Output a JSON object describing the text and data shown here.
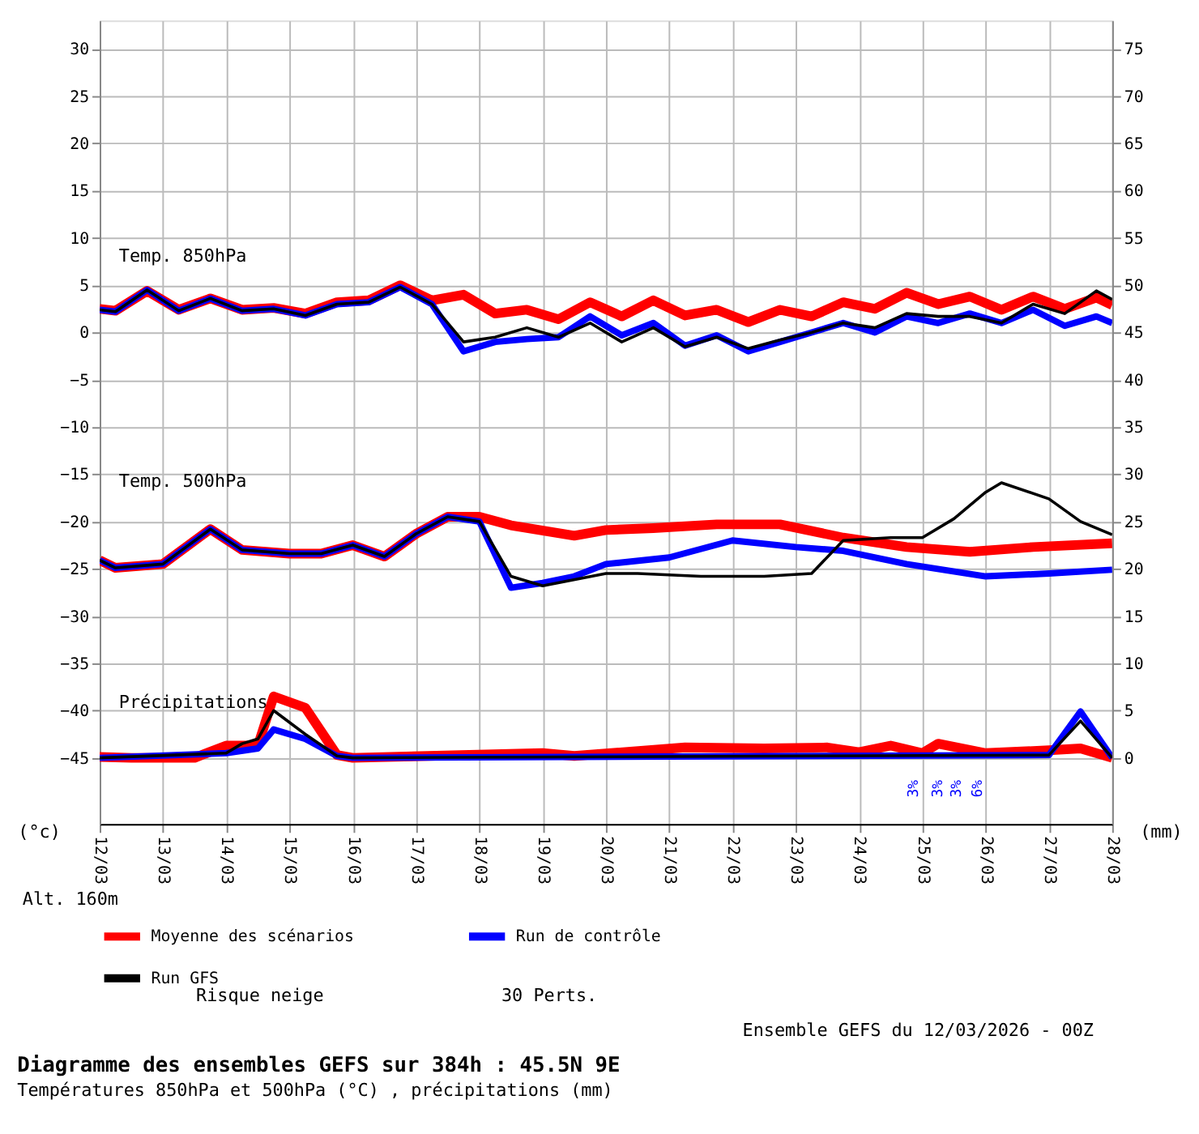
{
  "chart_data": {
    "type": "line",
    "title": "Diagramme des ensembles GEFS sur 384h : 45.5N 9E",
    "subtitle": "Températures 850hPa et 500hPa (°C) , précipitations (mm)",
    "ylabel": "(°c)",
    "y2label": "(mm)",
    "xlim": [
      "2026-03-12",
      "2026-03-28"
    ],
    "xticks": [
      {
        "value": "2026-03-12",
        "label": "12/03"
      },
      {
        "value": "2026-03-13",
        "label": "13/03"
      },
      {
        "value": "2026-03-14",
        "label": "14/03"
      },
      {
        "value": "2026-03-15",
        "label": "15/03"
      },
      {
        "value": "2026-03-16",
        "label": "16/03"
      },
      {
        "value": "2026-03-17",
        "label": "17/03"
      },
      {
        "value": "2026-03-18",
        "label": "18/03"
      },
      {
        "value": "2026-03-19",
        "label": "19/03"
      },
      {
        "value": "2026-03-20",
        "label": "20/03"
      },
      {
        "value": "2026-03-21",
        "label": "21/03"
      },
      {
        "value": "2026-03-22",
        "label": "22/03"
      },
      {
        "value": "2026-03-23",
        "label": "23/03"
      },
      {
        "value": "2026-03-24",
        "label": "24/03"
      },
      {
        "value": "2026-03-25",
        "label": "25/03"
      },
      {
        "value": "2026-03-26",
        "label": "26/03"
      },
      {
        "value": "2026-03-27",
        "label": "27/03"
      },
      {
        "value": "2026-03-28",
        "label": "28/03"
      }
    ],
    "ylim": [
      -52,
      33
    ],
    "yticks": [
      -45,
      -40,
      -35,
      -30,
      -25,
      -20,
      -15,
      -10,
      -5,
      0,
      5,
      10,
      15,
      20,
      25,
      30
    ],
    "y2lim": [
      -7,
      78
    ],
    "y2ticks": [
      0,
      5,
      10,
      15,
      20,
      25,
      30,
      35,
      40,
      45,
      50,
      55,
      60,
      65,
      70,
      75
    ],
    "grid": true,
    "legend": "bottom",
    "series": [
      {
        "name": "Moyenne des scénarios",
        "color": "#ff0000",
        "x": [
          "2026-03-12T00:00",
          "2026-03-12T06:00",
          "2026-03-12T18:00",
          "2026-03-13T06:00",
          "2026-03-13T18:00",
          "2026-03-14T06:00",
          "2026-03-14T18:00",
          "2026-03-15T06:00",
          "2026-03-15T18:00",
          "2026-03-16T06:00",
          "2026-03-16T18:00",
          "2026-03-17T06:00",
          "2026-03-17T18:00",
          "2026-03-18T06:00",
          "2026-03-18T18:00",
          "2026-03-19T06:00",
          "2026-03-19T18:00",
          "2026-03-20T06:00",
          "2026-03-20T18:00",
          "2026-03-21T06:00",
          "2026-03-21T18:00",
          "2026-03-22T06:00",
          "2026-03-22T18:00",
          "2026-03-23T06:00",
          "2026-03-23T18:00",
          "2026-03-24T06:00",
          "2026-03-24T18:00",
          "2026-03-25T06:00",
          "2026-03-25T18:00",
          "2026-03-26T06:00",
          "2026-03-26T18:00",
          "2026-03-27T06:00",
          "2026-03-27T18:00",
          "2026-03-28T00:00"
        ],
        "values": [
          2.5,
          2.3,
          4.4,
          2.4,
          3.6,
          2.4,
          2.6,
          2.0,
          3.2,
          3.4,
          5.0,
          3.4,
          4.0,
          2.0,
          2.4,
          1.4,
          3.2,
          1.7,
          3.4,
          1.8,
          2.4,
          1.1,
          2.4,
          1.7,
          3.2,
          2.5,
          4.2,
          3.0,
          3.8,
          2.4,
          3.8,
          2.5,
          3.7,
          2.9
        ]
      },
      {
        "name": "Run de contrôle",
        "color": "#0000ff",
        "x": [
          "2026-03-12T00:00",
          "2026-03-12T06:00",
          "2026-03-12T18:00",
          "2026-03-13T06:00",
          "2026-03-13T18:00",
          "2026-03-14T06:00",
          "2026-03-14T18:00",
          "2026-03-15T06:00",
          "2026-03-15T18:00",
          "2026-03-16T06:00",
          "2026-03-16T18:00",
          "2026-03-17T06:00",
          "2026-03-17T18:00",
          "2026-03-18T06:00",
          "2026-03-18T18:00",
          "2026-03-19T06:00",
          "2026-03-19T18:00",
          "2026-03-20T06:00",
          "2026-03-20T18:00",
          "2026-03-21T06:00",
          "2026-03-21T18:00",
          "2026-03-22T06:00",
          "2026-03-22T18:00",
          "2026-03-23T06:00",
          "2026-03-23T18:00",
          "2026-03-24T06:00",
          "2026-03-24T18:00",
          "2026-03-25T06:00",
          "2026-03-25T18:00",
          "2026-03-26T06:00",
          "2026-03-26T18:00",
          "2026-03-27T06:00",
          "2026-03-27T18:00",
          "2026-03-28T00:00"
        ],
        "values": [
          2.4,
          2.2,
          4.5,
          2.3,
          3.6,
          2.3,
          2.5,
          1.8,
          3.0,
          3.2,
          4.8,
          3.0,
          -2.0,
          -1.0,
          -0.7,
          -0.5,
          1.7,
          -0.3,
          1.0,
          -1.4,
          -0.3,
          -2.0,
          -1.0,
          0.0,
          1.0,
          0.0,
          1.7,
          1.0,
          2.0,
          1.0,
          2.4,
          0.7,
          1.7,
          1.0
        ]
      },
      {
        "name": "Run GFS",
        "color": "#000000",
        "x": [
          "2026-03-12T00:00",
          "2026-03-12T06:00",
          "2026-03-12T18:00",
          "2026-03-13T06:00",
          "2026-03-13T18:00",
          "2026-03-14T06:00",
          "2026-03-14T18:00",
          "2026-03-15T06:00",
          "2026-03-15T18:00",
          "2026-03-16T06:00",
          "2026-03-16T18:00",
          "2026-03-17T06:00",
          "2026-03-17T18:00",
          "2026-03-18T06:00",
          "2026-03-18T18:00",
          "2026-03-19T06:00",
          "2026-03-19T18:00",
          "2026-03-20T06:00",
          "2026-03-20T18:00",
          "2026-03-21T06:00",
          "2026-03-21T18:00",
          "2026-03-22T06:00",
          "2026-03-22T18:00",
          "2026-03-23T06:00",
          "2026-03-23T18:00",
          "2026-03-24T06:00",
          "2026-03-24T18:00",
          "2026-03-25T06:00",
          "2026-03-25T18:00",
          "2026-03-26T06:00",
          "2026-03-26T18:00",
          "2026-03-27T06:00",
          "2026-03-27T18:00",
          "2026-03-28T00:00"
        ],
        "values": [
          2.4,
          2.2,
          4.5,
          2.3,
          3.6,
          2.3,
          2.5,
          1.8,
          3.0,
          3.2,
          4.8,
          3.0,
          -1.0,
          -0.5,
          0.5,
          -0.5,
          1.0,
          -1.0,
          0.5,
          -1.5,
          -0.5,
          -1.7,
          -0.8,
          0.0,
          1.0,
          0.5,
          2.0,
          1.7,
          1.7,
          1.0,
          3.0,
          2.0,
          4.4,
          3.5
        ]
      },
      {
        "color": "#ff0000",
        "x": [
          "2026-03-12T00:00",
          "2026-03-12T06:00",
          "2026-03-13T00:00",
          "2026-03-13T18:00",
          "2026-03-14T06:00",
          "2026-03-15T00:00",
          "2026-03-15T12:00",
          "2026-03-16T00:00",
          "2026-03-16T12:00",
          "2026-03-17T00:00",
          "2026-03-17T12:00",
          "2026-03-18T00:00",
          "2026-03-18T12:00",
          "2026-03-19T12:00",
          "2026-03-20T00:00",
          "2026-03-20T18:00",
          "2026-03-21T18:00",
          "2026-03-22T18:00",
          "2026-03-23T18:00",
          "2026-03-24T18:00",
          "2026-03-25T18:00",
          "2026-03-26T18:00",
          "2026-03-28T00:00"
        ],
        "values": [
          -24.1,
          -24.9,
          -24.5,
          -20.8,
          -23.0,
          -23.4,
          -23.4,
          -22.5,
          -23.7,
          -21.3,
          -19.5,
          -19.5,
          -20.4,
          -21.5,
          -20.9,
          -20.7,
          -20.3,
          -20.3,
          -21.7,
          -22.7,
          -23.2,
          -22.7,
          -22.3
        ]
      },
      {
        "color": "#0000ff",
        "x": [
          "2026-03-12T00:00",
          "2026-03-12T06:00",
          "2026-03-13T00:00",
          "2026-03-13T18:00",
          "2026-03-14T06:00",
          "2026-03-15T00:00",
          "2026-03-15T12:00",
          "2026-03-16T00:00",
          "2026-03-16T12:00",
          "2026-03-17T00:00",
          "2026-03-17T12:00",
          "2026-03-18T00:00",
          "2026-03-18T12:00",
          "2026-03-19T00:00",
          "2026-03-19T12:00",
          "2026-03-20T00:00",
          "2026-03-21T00:00",
          "2026-03-22T00:00",
          "2026-03-23T00:00",
          "2026-03-23T18:00",
          "2026-03-24T18:00",
          "2026-03-26T00:00",
          "2026-03-27T00:00",
          "2026-03-28T00:00"
        ],
        "values": [
          -24.1,
          -24.9,
          -24.5,
          -20.8,
          -23.0,
          -23.4,
          -23.4,
          -22.5,
          -23.7,
          -21.3,
          -19.5,
          -20.0,
          -27.0,
          -26.5,
          -25.8,
          -24.5,
          -23.8,
          -22.0,
          -22.7,
          -23.1,
          -24.5,
          -25.8,
          -25.5,
          -25.1
        ]
      },
      {
        "color": "#000000",
        "x": [
          "2026-03-12T00:00",
          "2026-03-12T06:00",
          "2026-03-13T00:00",
          "2026-03-13T18:00",
          "2026-03-14T06:00",
          "2026-03-15T00:00",
          "2026-03-15T12:00",
          "2026-03-16T00:00",
          "2026-03-16T12:00",
          "2026-03-17T00:00",
          "2026-03-17T12:00",
          "2026-03-18T00:00",
          "2026-03-18T12:00",
          "2026-03-19T00:00",
          "2026-03-20T00:00",
          "2026-03-20T12:00",
          "2026-03-21T12:00",
          "2026-03-22T12:00",
          "2026-03-23T06:00",
          "2026-03-23T18:00",
          "2026-03-24T12:00",
          "2026-03-25T00:00",
          "2026-03-25T12:00",
          "2026-03-26T00:00",
          "2026-03-26T06:00",
          "2026-03-27T00:00",
          "2026-03-27T12:00",
          "2026-03-28T00:00"
        ],
        "values": [
          -24.1,
          -24.9,
          -24.5,
          -20.8,
          -23.0,
          -23.4,
          -23.4,
          -22.5,
          -23.7,
          -21.3,
          -19.5,
          -20.0,
          -25.8,
          -26.8,
          -25.5,
          -25.5,
          -25.8,
          -25.8,
          -25.5,
          -22.0,
          -21.7,
          -21.7,
          -19.7,
          -16.9,
          -15.9,
          -17.6,
          -20.0,
          -21.4
        ]
      },
      {
        "color": "#ff0000",
        "axis": "y2",
        "x": [
          "2026-03-12T00:00",
          "2026-03-12T12:00",
          "2026-03-13T12:00",
          "2026-03-14T00:00",
          "2026-03-14T12:00",
          "2026-03-14T18:00",
          "2026-03-15T06:00",
          "2026-03-15T18:00",
          "2026-03-16T00:00",
          "2026-03-19T00:00",
          "2026-03-19T12:00",
          "2026-03-21T06:00",
          "2026-03-22T12:00",
          "2026-03-23T12:00",
          "2026-03-24T00:00",
          "2026-03-24T12:00",
          "2026-03-25T00:00",
          "2026-03-25T06:00",
          "2026-03-26T00:00",
          "2026-03-27T00:00",
          "2026-03-27T12:00",
          "2026-03-28T00:00"
        ],
        "values": [
          0.1,
          0,
          0,
          1.3,
          1.3,
          6.5,
          5.3,
          0.3,
          0,
          0.5,
          0.2,
          1.1,
          1.0,
          1.1,
          0.6,
          1.3,
          0.5,
          1.5,
          0.5,
          0.8,
          1.0,
          0
        ]
      },
      {
        "color": "#0000ff",
        "axis": "y2",
        "x": [
          "2026-03-12T00:00",
          "2026-03-14T00:00",
          "2026-03-14T12:00",
          "2026-03-14T18:00",
          "2026-03-15T06:00",
          "2026-03-15T18:00",
          "2026-03-16T00:00",
          "2026-03-27T00:00",
          "2026-03-27T12:00",
          "2026-03-28T00:00"
        ],
        "values": [
          0,
          0.5,
          1.0,
          3.0,
          2.0,
          0.2,
          0,
          0.3,
          4.9,
          0
        ]
      },
      {
        "color": "#000000",
        "axis": "y2",
        "x": [
          "2026-03-12T00:00",
          "2026-03-14T00:00",
          "2026-03-14T06:00",
          "2026-03-14T12:00",
          "2026-03-14T18:00",
          "2026-03-15T06:00",
          "2026-03-15T18:00",
          "2026-03-16T00:00",
          "2026-03-27T00:00",
          "2026-03-27T12:00",
          "2026-03-28T00:00"
        ],
        "values": [
          0,
          0.5,
          1.5,
          2.0,
          5.0,
          2.5,
          0.2,
          0,
          0.3,
          3.9,
          0
        ]
      }
    ],
    "annotations": [
      "Temp. 850hPa",
      "Temp. 500hPa",
      "Précipitations",
      "3%",
      "3%",
      "3%",
      "6%",
      "Alt. 160m",
      "Risque neige",
      "30 Perts.",
      "Ensemble GEFS du 12/03/2026 - 00Z"
    ]
  }
}
